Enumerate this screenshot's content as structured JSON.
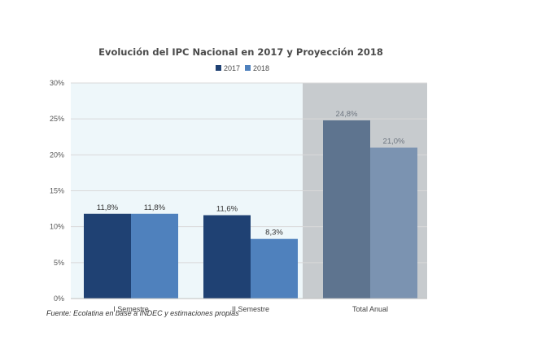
{
  "chart_data": {
    "type": "bar",
    "title": "Evolución del IPC Nacional en 2017 y Proyección 2018",
    "categories": [
      "I Semestre",
      "II Semestre",
      "Total Anual"
    ],
    "series": [
      {
        "name": "2017",
        "values": [
          11.8,
          11.6,
          24.8
        ],
        "labels": [
          "11,8%",
          "11,6%",
          "24,8%"
        ]
      },
      {
        "name": "2018",
        "values": [
          11.8,
          8.3,
          21.0
        ],
        "labels": [
          "11,8%",
          "8,3%",
          "21,0%"
        ]
      }
    ],
    "ylim": [
      0,
      30
    ],
    "yticks": [
      "0%",
      "5%",
      "10%",
      "15%",
      "20%",
      "25%",
      "30%"
    ],
    "legend_position": "top",
    "grid": true,
    "colors": {
      "series_2017": "#1f4173",
      "series_2018": "#4f81bd",
      "series_2017_total": "#5e748f",
      "series_2018_total": "#7b93b1",
      "semester_bg": "#eef7fa",
      "total_bg": "#c7cbce"
    }
  },
  "source_note": "Fuente: Ecolatina en base a INDEC y estimaciones propias"
}
